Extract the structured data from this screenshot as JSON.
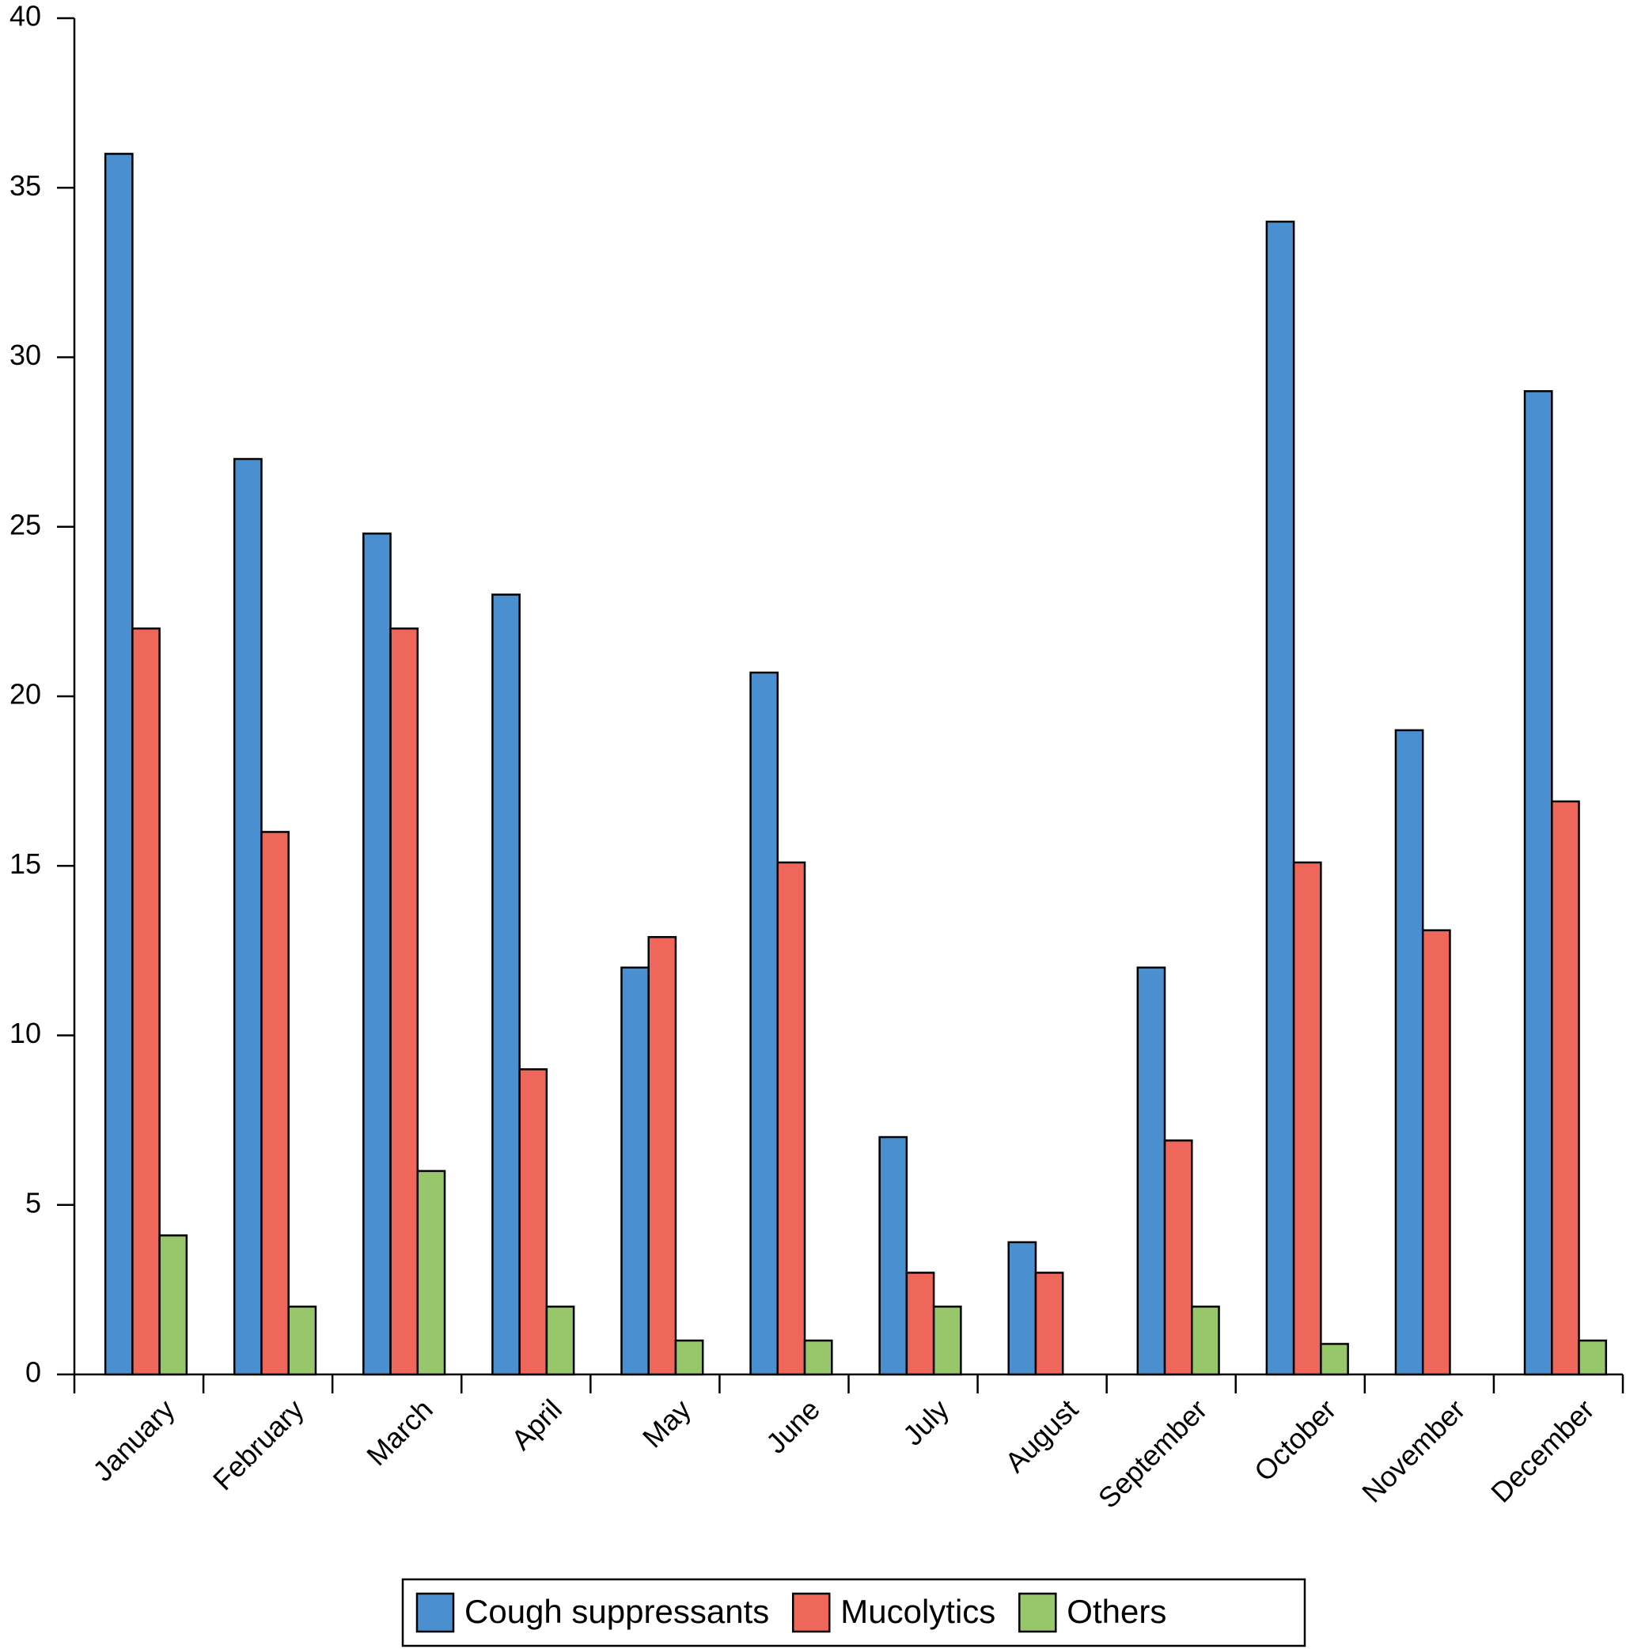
{
  "chart_data": {
    "type": "bar",
    "categories": [
      "January",
      "February",
      "March",
      "April",
      "May",
      "June",
      "July",
      "August",
      "September",
      "October",
      "November",
      "December"
    ],
    "series": [
      {
        "name": "Cough suppressants",
        "color": "#4a8fd0",
        "values": [
          36,
          27,
          24.8,
          23,
          12,
          20.7,
          7,
          3.9,
          12,
          34,
          19,
          29
        ]
      },
      {
        "name": "Mucolytics",
        "color": "#ef665b",
        "values": [
          22,
          16,
          22,
          9,
          12.9,
          15.1,
          3,
          3,
          6.9,
          15.1,
          13.1,
          16.9
        ]
      },
      {
        "name": "Others",
        "color": "#97c66b",
        "values": [
          4.1,
          2,
          6,
          2,
          1,
          1,
          2,
          null,
          2,
          0.9,
          null,
          1
        ]
      }
    ],
    "ylim": [
      0,
      40
    ],
    "yticks": [
      0,
      5,
      10,
      15,
      20,
      25,
      30,
      35,
      40
    ],
    "legend": "bottom"
  }
}
